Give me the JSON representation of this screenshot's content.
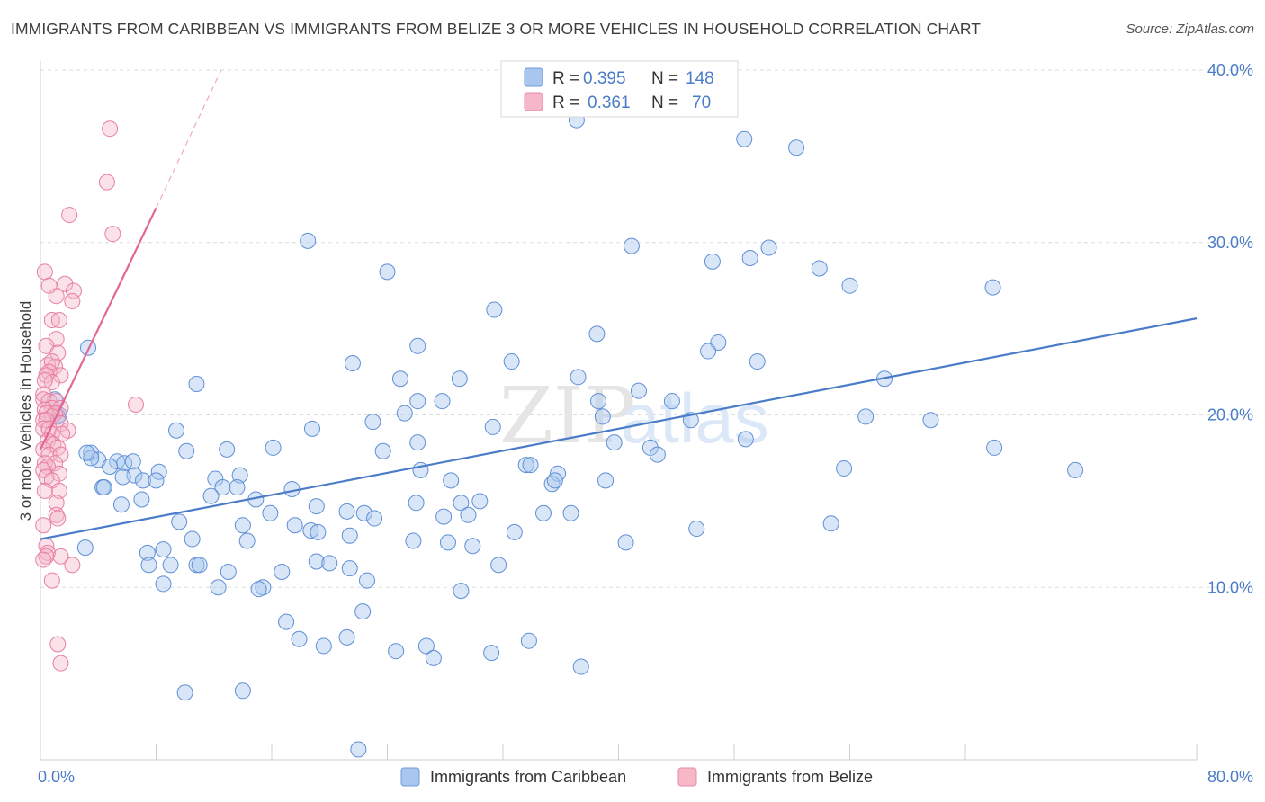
{
  "title": "IMMIGRANTS FROM CARIBBEAN VS IMMIGRANTS FROM BELIZE 3 OR MORE VEHICLES IN HOUSEHOLD CORRELATION CHART",
  "source": "Source: ZipAtlas.com",
  "watermark": {
    "left": "ZIP",
    "right": "atlas"
  },
  "legend": {
    "rows": [
      {
        "r_label": "R =",
        "r_value": "0.395",
        "n_label": "N =",
        "n_value": "148",
        "color": "#a9c7ee"
      },
      {
        "r_label": "R =",
        "r_value": "0.361",
        "n_label": "N =",
        "n_value": "70",
        "color": "#f6b7c9"
      }
    ]
  },
  "chart_data": {
    "type": "scatter",
    "xlabel": "",
    "ylabel": "3 or more Vehicles in Household",
    "xlim": [
      0,
      80
    ],
    "ylim": [
      0,
      40
    ],
    "x_tick_labels": [
      "0.0%",
      "80.0%"
    ],
    "y_ticks": [
      10,
      20,
      30,
      40
    ],
    "y_tick_labels": [
      "10.0%",
      "20.0%",
      "30.0%",
      "40.0%"
    ],
    "grid": "horizontal dashed",
    "legend_position": "bottom-center",
    "colors": {
      "caribbean": "#4a7cc7",
      "caribbean_fill": "#a9c7ee",
      "belize": "#e36792",
      "belize_fill": "#f6b7c9"
    },
    "series": [
      {
        "name": "Immigrants from Caribbean",
        "trend": {
          "x": [
            0,
            80
          ],
          "y": [
            12.8,
            25.6
          ]
        },
        "points": [
          [
            37.1,
            37.1
          ],
          [
            40.6,
            38.0
          ],
          [
            48.7,
            36.0
          ],
          [
            52.3,
            35.5
          ],
          [
            18.5,
            30.1
          ],
          [
            40.9,
            29.8
          ],
          [
            46.5,
            28.9
          ],
          [
            49.1,
            29.1
          ],
          [
            50.4,
            29.7
          ],
          [
            24.0,
            28.3
          ],
          [
            53.9,
            28.5
          ],
          [
            56.0,
            27.5
          ],
          [
            65.9,
            27.4
          ],
          [
            31.4,
            26.1
          ],
          [
            38.5,
            24.7
          ],
          [
            46.9,
            24.2
          ],
          [
            46.2,
            23.7
          ],
          [
            26.1,
            24.0
          ],
          [
            21.6,
            23.0
          ],
          [
            32.6,
            23.1
          ],
          [
            49.6,
            23.1
          ],
          [
            37.2,
            22.2
          ],
          [
            29.0,
            22.1
          ],
          [
            24.9,
            22.1
          ],
          [
            58.4,
            22.1
          ],
          [
            10.8,
            21.8
          ],
          [
            41.4,
            21.4
          ],
          [
            26.1,
            20.8
          ],
          [
            27.8,
            20.8
          ],
          [
            43.7,
            20.8
          ],
          [
            38.6,
            20.8
          ],
          [
            25.2,
            20.1
          ],
          [
            38.9,
            19.9
          ],
          [
            57.1,
            19.9
          ],
          [
            45.0,
            19.7
          ],
          [
            61.6,
            19.7
          ],
          [
            23.0,
            19.6
          ],
          [
            31.3,
            19.3
          ],
          [
            18.8,
            19.2
          ],
          [
            9.4,
            19.1
          ],
          [
            48.8,
            18.6
          ],
          [
            26.1,
            18.4
          ],
          [
            39.7,
            18.4
          ],
          [
            16.1,
            18.1
          ],
          [
            12.9,
            18.0
          ],
          [
            10.1,
            17.9
          ],
          [
            42.2,
            18.1
          ],
          [
            23.7,
            17.9
          ],
          [
            66.0,
            18.1
          ],
          [
            42.7,
            17.7
          ],
          [
            3.5,
            17.8
          ],
          [
            4.0,
            17.4
          ],
          [
            5.3,
            17.3
          ],
          [
            5.8,
            17.2
          ],
          [
            3.5,
            17.5
          ],
          [
            6.4,
            17.3
          ],
          [
            4.8,
            17.0
          ],
          [
            3.2,
            17.8
          ],
          [
            33.6,
            17.1
          ],
          [
            33.9,
            17.1
          ],
          [
            55.6,
            16.9
          ],
          [
            71.6,
            16.8
          ],
          [
            8.2,
            16.7
          ],
          [
            6.5,
            16.5
          ],
          [
            12.1,
            16.3
          ],
          [
            13.8,
            16.5
          ],
          [
            35.8,
            16.6
          ],
          [
            5.7,
            16.4
          ],
          [
            7.1,
            16.2
          ],
          [
            8.0,
            16.2
          ],
          [
            28.4,
            16.2
          ],
          [
            39.1,
            16.2
          ],
          [
            35.4,
            16.0
          ],
          [
            35.6,
            16.2
          ],
          [
            4.3,
            15.8
          ],
          [
            4.4,
            15.8
          ],
          [
            12.6,
            15.8
          ],
          [
            13.6,
            15.8
          ],
          [
            17.4,
            15.7
          ],
          [
            11.8,
            15.3
          ],
          [
            7.0,
            15.1
          ],
          [
            14.9,
            15.1
          ],
          [
            30.4,
            15.0
          ],
          [
            29.1,
            14.9
          ],
          [
            26.0,
            14.9
          ],
          [
            5.6,
            14.8
          ],
          [
            19.1,
            14.7
          ],
          [
            21.2,
            14.4
          ],
          [
            15.9,
            14.3
          ],
          [
            22.4,
            14.3
          ],
          [
            29.6,
            14.2
          ],
          [
            34.8,
            14.3
          ],
          [
            36.7,
            14.3
          ],
          [
            27.9,
            14.1
          ],
          [
            23.1,
            14.0
          ],
          [
            9.6,
            13.8
          ],
          [
            14.0,
            13.6
          ],
          [
            17.6,
            13.6
          ],
          [
            18.7,
            13.3
          ],
          [
            32.8,
            13.2
          ],
          [
            45.4,
            13.4
          ],
          [
            54.7,
            13.7
          ],
          [
            21.4,
            13.0
          ],
          [
            19.2,
            13.2
          ],
          [
            10.5,
            12.8
          ],
          [
            14.3,
            12.7
          ],
          [
            25.8,
            12.7
          ],
          [
            28.2,
            12.6
          ],
          [
            29.9,
            12.4
          ],
          [
            40.5,
            12.6
          ],
          [
            3.1,
            12.3
          ],
          [
            7.4,
            12.0
          ],
          [
            8.5,
            12.2
          ],
          [
            19.1,
            11.5
          ],
          [
            20.0,
            11.4
          ],
          [
            10.8,
            11.3
          ],
          [
            11.0,
            11.3
          ],
          [
            7.5,
            11.3
          ],
          [
            9.0,
            11.3
          ],
          [
            31.7,
            11.3
          ],
          [
            21.4,
            11.1
          ],
          [
            13.0,
            10.9
          ],
          [
            16.7,
            10.9
          ],
          [
            22.6,
            10.4
          ],
          [
            8.5,
            10.2
          ],
          [
            12.3,
            10.0
          ],
          [
            15.4,
            10.0
          ],
          [
            15.1,
            9.9
          ],
          [
            29.1,
            9.8
          ],
          [
            22.3,
            8.6
          ],
          [
            17.0,
            8.0
          ],
          [
            17.9,
            7.0
          ],
          [
            19.6,
            6.6
          ],
          [
            21.2,
            7.1
          ],
          [
            26.7,
            6.6
          ],
          [
            33.8,
            6.9
          ],
          [
            24.6,
            6.3
          ],
          [
            27.2,
            5.9
          ],
          [
            31.2,
            6.2
          ],
          [
            37.4,
            5.4
          ],
          [
            10.0,
            3.9
          ],
          [
            14.0,
            4.0
          ],
          [
            22.0,
            0.6
          ],
          [
            3.3,
            23.9
          ],
          [
            1.0,
            20.9
          ],
          [
            1.3,
            20.0
          ],
          [
            1.2,
            19.9
          ],
          [
            26.3,
            16.8
          ]
        ]
      },
      {
        "name": "Immigrants from Belize",
        "trend": {
          "x": [
            0,
            8
          ],
          "y": [
            18.0,
            32.0
          ]
        },
        "trend_dashed": {
          "x": [
            8,
            12.5
          ],
          "y": [
            32.0,
            40.0
          ]
        },
        "points": [
          [
            4.8,
            36.6
          ],
          [
            4.6,
            33.5
          ],
          [
            2.0,
            31.6
          ],
          [
            5.0,
            30.5
          ],
          [
            0.3,
            28.3
          ],
          [
            1.7,
            27.6
          ],
          [
            2.3,
            27.2
          ],
          [
            1.1,
            26.9
          ],
          [
            2.2,
            26.6
          ],
          [
            0.6,
            27.5
          ],
          [
            0.8,
            25.5
          ],
          [
            1.3,
            25.5
          ],
          [
            1.1,
            24.4
          ],
          [
            0.4,
            24.0
          ],
          [
            1.2,
            23.6
          ],
          [
            0.5,
            22.9
          ],
          [
            1.0,
            22.8
          ],
          [
            0.8,
            23.1
          ],
          [
            0.6,
            22.5
          ],
          [
            1.4,
            22.3
          ],
          [
            0.4,
            22.3
          ],
          [
            0.8,
            21.9
          ],
          [
            0.3,
            22.0
          ],
          [
            0.2,
            21.2
          ],
          [
            0.2,
            20.9
          ],
          [
            0.6,
            20.8
          ],
          [
            1.1,
            20.8
          ],
          [
            0.8,
            20.4
          ],
          [
            1.4,
            20.4
          ],
          [
            0.3,
            20.3
          ],
          [
            0.4,
            20.1
          ],
          [
            1.0,
            20.1
          ],
          [
            0.8,
            19.9
          ],
          [
            0.2,
            19.7
          ],
          [
            0.4,
            19.7
          ],
          [
            1.4,
            19.5
          ],
          [
            0.2,
            19.2
          ],
          [
            0.6,
            19.2
          ],
          [
            1.9,
            19.1
          ],
          [
            0.8,
            18.9
          ],
          [
            1.5,
            18.9
          ],
          [
            0.5,
            18.5
          ],
          [
            0.9,
            18.3
          ],
          [
            1.2,
            18.1
          ],
          [
            0.2,
            18.0
          ],
          [
            0.6,
            17.7
          ],
          [
            1.4,
            17.7
          ],
          [
            0.3,
            17.2
          ],
          [
            1.0,
            17.2
          ],
          [
            0.5,
            17.0
          ],
          [
            0.2,
            16.8
          ],
          [
            1.3,
            16.6
          ],
          [
            0.4,
            16.4
          ],
          [
            0.8,
            16.2
          ],
          [
            1.3,
            15.6
          ],
          [
            0.3,
            15.6
          ],
          [
            1.1,
            14.9
          ],
          [
            1.1,
            14.2
          ],
          [
            1.2,
            14.0
          ],
          [
            0.2,
            13.6
          ],
          [
            0.4,
            12.4
          ],
          [
            0.5,
            12.0
          ],
          [
            0.4,
            11.8
          ],
          [
            1.4,
            11.8
          ],
          [
            0.2,
            11.6
          ],
          [
            2.2,
            11.3
          ],
          [
            0.8,
            10.4
          ],
          [
            1.2,
            6.7
          ],
          [
            1.4,
            5.6
          ],
          [
            6.6,
            20.6
          ]
        ]
      }
    ]
  },
  "bottom_legend": {
    "items": [
      {
        "label": "Immigrants from Caribbean",
        "color": "#a9c7ee"
      },
      {
        "label": "Immigrants from Belize",
        "color": "#f6b7c9"
      }
    ]
  }
}
